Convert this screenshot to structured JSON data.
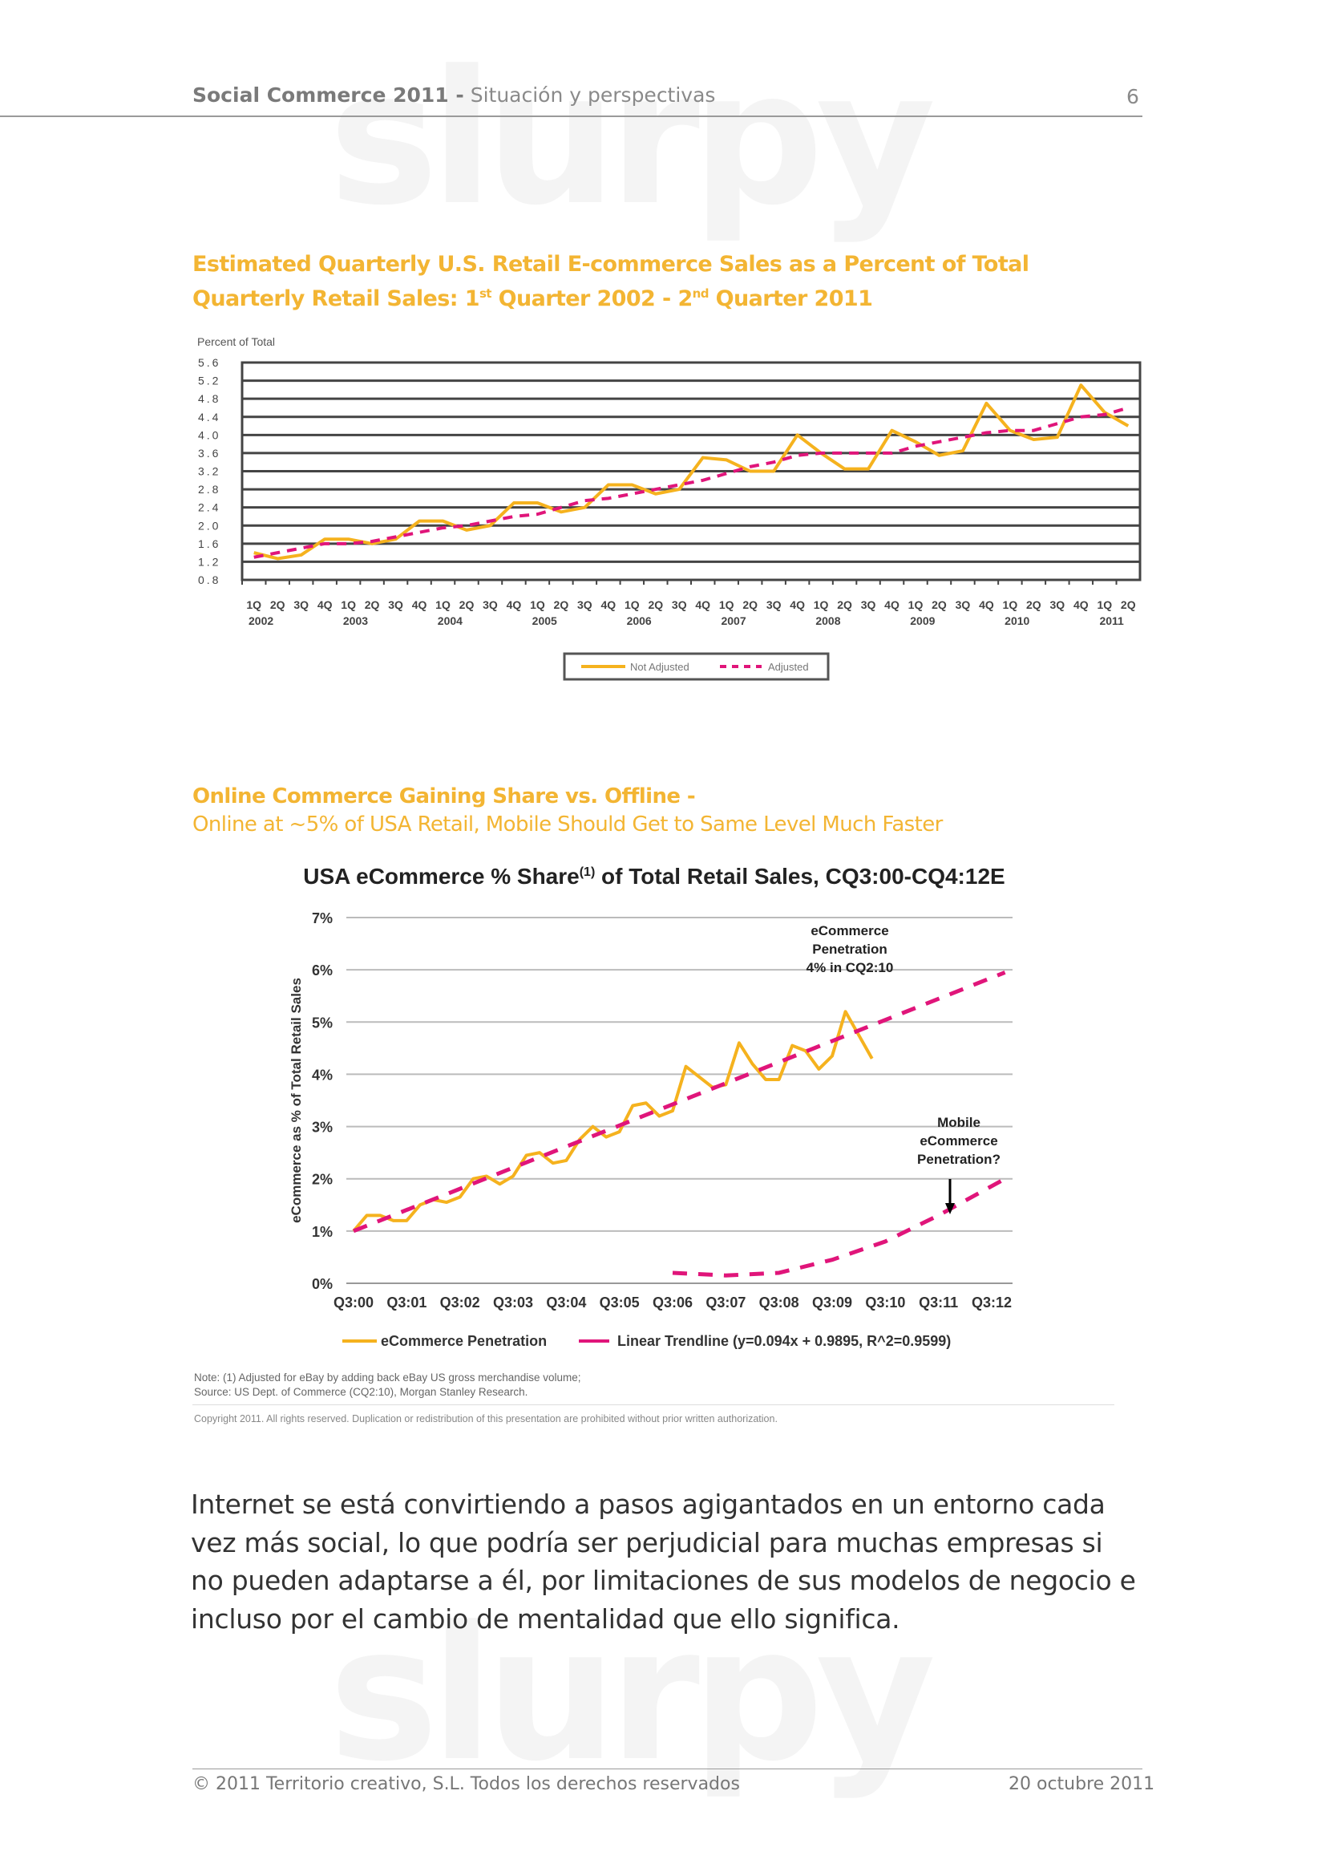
{
  "header": {
    "title_bold": "Social Commerce 2011 -",
    "title_rest": " Situación y perspectivas",
    "page_number": "6"
  },
  "watermark": "slurpy",
  "section1": {
    "title_line1": "Estimated Quarterly U.S. Retail E-commerce Sales as a Percent of Total",
    "title_line2_a": "Quarterly Retail Sales: 1",
    "title_line2_sup1": "st",
    "title_line2_b": " Quarter 2002 - 2",
    "title_line2_sup2": "nd",
    "title_line2_c": " Quarter 2011"
  },
  "section2": {
    "title_bold": "Online Commerce Gaining Share vs. Offline -",
    "subtitle": "Online at ~5% of USA Retail, Mobile Should Get to Same Level Much Faster",
    "note1": "Note: (1) Adjusted for eBay by adding back eBay US gross merchandise volume;",
    "note2": "Source: US Dept. of Commerce (CQ2:10), Morgan Stanley Research.",
    "copyright": "Copyright 2011. All rights reserved. Duplication or redistribution of this presentation are prohibited without prior written authorization."
  },
  "chart_data": [
    {
      "type": "line",
      "ylabel": "Percent of Total",
      "ylim": [
        0.8,
        5.6
      ],
      "yticks": [
        "5.6",
        "5.2",
        "4.8",
        "4.4",
        "4.0",
        "3.6",
        "3.2",
        "2.8",
        "2.4",
        "2.0",
        "1.6",
        "1.2",
        "0.8"
      ],
      "quarter_labels": [
        "1Q",
        "2Q",
        "3Q",
        "4Q"
      ],
      "years": [
        "2002",
        "2003",
        "2004",
        "2005",
        "2006",
        "2007",
        "2008",
        "2009",
        "2010",
        "2011"
      ],
      "grid": true,
      "legend_position": "bottom",
      "series": [
        {
          "name": "Not Adjusted",
          "color": "#f5b21e",
          "style": "solid",
          "values": [
            1.4,
            1.27,
            1.35,
            1.7,
            1.7,
            1.6,
            1.7,
            2.1,
            2.1,
            1.9,
            2.0,
            2.5,
            2.5,
            2.3,
            2.4,
            2.9,
            2.9,
            2.7,
            2.8,
            3.5,
            3.45,
            3.2,
            3.2,
            4.0,
            3.6,
            3.25,
            3.25,
            4.1,
            3.85,
            3.55,
            3.65,
            4.7,
            4.1,
            3.9,
            3.95,
            5.1,
            4.5,
            4.2
          ]
        },
        {
          "name": "Adjusted",
          "color": "#e0157a",
          "style": "dashed",
          "values": [
            1.3,
            1.4,
            1.5,
            1.6,
            1.6,
            1.65,
            1.75,
            1.85,
            1.95,
            2.0,
            2.1,
            2.2,
            2.25,
            2.4,
            2.55,
            2.6,
            2.7,
            2.8,
            2.9,
            3.0,
            3.15,
            3.3,
            3.4,
            3.55,
            3.6,
            3.6,
            3.6,
            3.6,
            3.75,
            3.85,
            3.95,
            4.05,
            4.1,
            4.1,
            4.25,
            4.4,
            4.45,
            4.6
          ]
        }
      ]
    },
    {
      "type": "line",
      "title": "USA eCommerce % Share",
      "title_sup": "(1)",
      "title_rest": " of Total Retail Sales, CQ3:00-CQ4:12E",
      "ylabel": "eCommerce as % of Total Retail Sales",
      "ylim": [
        0,
        7
      ],
      "yticks": [
        "0%",
        "1%",
        "2%",
        "3%",
        "4%",
        "5%",
        "6%",
        "7%"
      ],
      "xticks": [
        "Q3:00",
        "Q3:01",
        "Q3:02",
        "Q3:03",
        "Q3:04",
        "Q3:05",
        "Q3:06",
        "Q3:07",
        "Q3:08",
        "Q3:09",
        "Q3:10",
        "Q3:11",
        "Q3:12"
      ],
      "grid": true,
      "legend_position": "bottom",
      "annotations": {
        "ecommerce": [
          "eCommerce",
          "Penetration",
          "4% in CQ2:10"
        ],
        "mobile": [
          "Mobile",
          "eCommerce",
          "Penetration?"
        ]
      },
      "series": [
        {
          "name": "eCommerce Penetration",
          "color": "#f5b21e",
          "style": "solid",
          "start": "Q3:00",
          "values": [
            1.0,
            1.3,
            1.3,
            1.2,
            1.2,
            1.5,
            1.6,
            1.55,
            1.65,
            2.0,
            2.05,
            1.9,
            2.05,
            2.45,
            2.5,
            2.3,
            2.35,
            2.75,
            3.0,
            2.8,
            2.9,
            3.4,
            3.45,
            3.2,
            3.3,
            4.15,
            3.95,
            3.75,
            3.8,
            4.6,
            4.2,
            3.9,
            3.9,
            4.55,
            4.45,
            4.1,
            4.35,
            5.2,
            4.75,
            4.3
          ]
        },
        {
          "name": "Linear Trendline (y=0.094x + 0.9895, R^2=0.9599)",
          "color": "#e0157a",
          "style": "dashed",
          "points": [
            [
              "Q3:00",
              1.0
            ],
            [
              "Q4:12",
              5.95
            ]
          ]
        },
        {
          "color": "#e0157a",
          "style": "dashed",
          "points": [
            [
              "Q3:06",
              0.2
            ],
            [
              "Q3:07",
              0.15
            ],
            [
              "Q3:08",
              0.2
            ],
            [
              "Q3:09",
              0.45
            ],
            [
              "Q3:10",
              0.8
            ],
            [
              "Q3:11",
              1.3
            ],
            [
              "Q4:12",
              2.0
            ]
          ]
        }
      ]
    }
  ],
  "body_text": "Internet se está convirtiendo a pasos agigantados en un entorno cada vez más social, lo que podría ser perjudicial para muchas empresas si no pueden adaptarse a él, por limitaciones de sus modelos de negocio e incluso por el cambio de mentalidad que ello significa.",
  "footer": {
    "left": "© 2011 Territorio creativo, S.L. Todos los derechos reservados",
    "right": "20 octubre 2011"
  }
}
